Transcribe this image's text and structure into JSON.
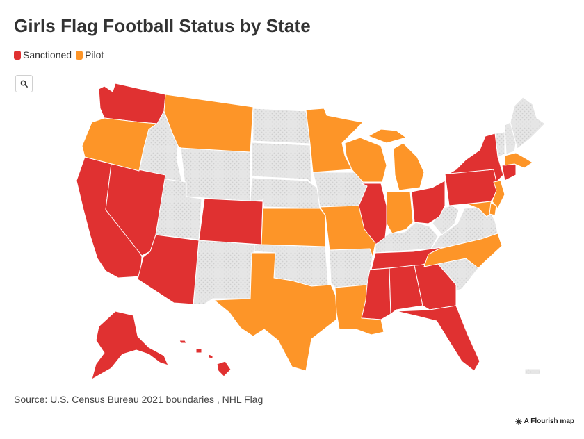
{
  "title": "Girls Flag Football Status by State",
  "legend": [
    {
      "label": "Sanctioned",
      "color": "#e03131"
    },
    {
      "label": "Pilot",
      "color": "#fd9528"
    }
  ],
  "colors": {
    "sanctioned": "#e03131",
    "pilot": "#fd9528",
    "none": "#e4e4e4"
  },
  "search": {
    "icon": "search-icon"
  },
  "source": {
    "prefix": "Source: ",
    "link_text": "U.S. Census Bureau 2021 boundaries ",
    "suffix": ", NHL Flag"
  },
  "credit": {
    "icon": "flourish-logo-icon",
    "text": "A Flourish map"
  }
}
